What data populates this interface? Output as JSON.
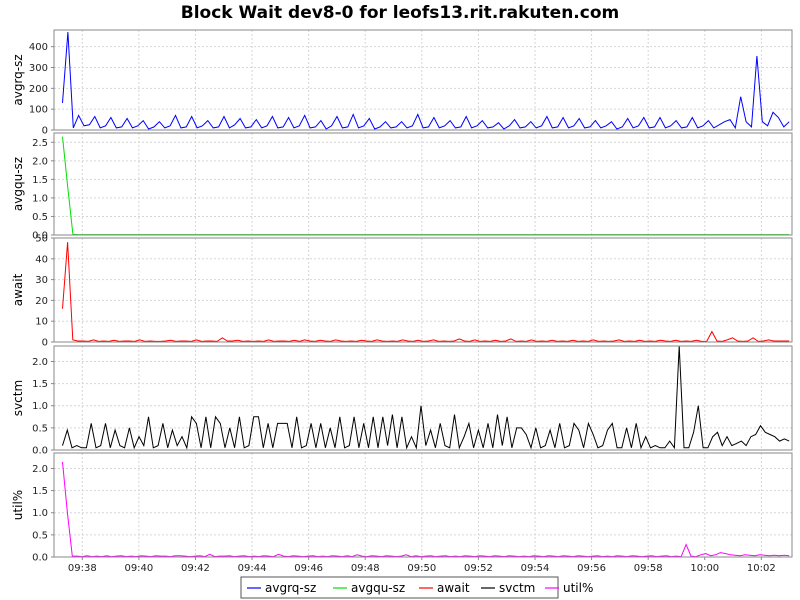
{
  "chart_data": {
    "type": "line",
    "title": "Block Wait dev8-0 for leofs13.rit.rakuten.com",
    "x_tick_labels": [
      "09:38",
      "09:40",
      "09:42",
      "09:44",
      "09:46",
      "09:48",
      "09:50",
      "09:52",
      "09:54",
      "09:56",
      "09:58",
      "10:00",
      "10:02"
    ],
    "x_range": [
      "09:37:00",
      "10:03:05"
    ],
    "grid": true,
    "legend_position": "bottom",
    "legend": [
      "avgrq-sz",
      "avgqu-sz",
      "await",
      "svctm",
      "util%"
    ],
    "panels": [
      {
        "name": "avgrq-sz",
        "ylabel": "avgrq-sz",
        "color": "#0000ff",
        "ylim": [
          0,
          480
        ],
        "yticks": [
          0,
          100,
          200,
          300,
          400
        ],
        "ytick_labels": [
          "0",
          "100",
          "200",
          "300",
          "400"
        ],
        "values": [
          130,
          470,
          10,
          70,
          20,
          25,
          65,
          10,
          20,
          60,
          10,
          15,
          55,
          10,
          20,
          45,
          5,
          15,
          40,
          10,
          20,
          70,
          10,
          15,
          65,
          10,
          20,
          45,
          10,
          15,
          65,
          10,
          25,
          55,
          10,
          15,
          50,
          10,
          20,
          65,
          10,
          15,
          60,
          10,
          20,
          70,
          10,
          15,
          45,
          5,
          20,
          65,
          10,
          15,
          75,
          10,
          20,
          55,
          5,
          15,
          40,
          10,
          15,
          40,
          10,
          20,
          75,
          10,
          15,
          60,
          10,
          20,
          45,
          10,
          15,
          65,
          10,
          20,
          45,
          10,
          15,
          35,
          5,
          20,
          50,
          10,
          15,
          40,
          10,
          20,
          65,
          10,
          15,
          60,
          10,
          20,
          55,
          10,
          15,
          45,
          10,
          20,
          40,
          5,
          15,
          55,
          10,
          20,
          60,
          10,
          15,
          60,
          10,
          20,
          45,
          10,
          15,
          60,
          10,
          20,
          45,
          10,
          25,
          40,
          50,
          10,
          160,
          40,
          15,
          355,
          40,
          20,
          85,
          60,
          15,
          40
        ]
      },
      {
        "name": "avgqu-sz",
        "ylabel": "avgqu-sz",
        "color": "#00e000",
        "ylim": [
          0,
          2.75
        ],
        "yticks": [
          0,
          0.5,
          1,
          1.5,
          2,
          2.5
        ],
        "ytick_labels": [
          "0.0",
          "0.5",
          "1.0",
          "1.5",
          "2.0",
          "2.5"
        ],
        "values": [
          2.65,
          1.3,
          0.02,
          0.01,
          0.01,
          0.01,
          0.01,
          0.01,
          0.01,
          0.01,
          0.01,
          0.01,
          0.01,
          0.01,
          0.01,
          0.01,
          0.01,
          0.01,
          0.01,
          0.01,
          0.01,
          0.01,
          0.01,
          0.01,
          0.01,
          0.01,
          0.01,
          0.01,
          0.01,
          0.01,
          0.01,
          0.01,
          0.01,
          0.01,
          0.01,
          0.01,
          0.01,
          0.01,
          0.01,
          0.01,
          0.01,
          0.01,
          0.01,
          0.01,
          0.01,
          0.01,
          0.01,
          0.01,
          0.01,
          0.01,
          0.01,
          0.01,
          0.01,
          0.01,
          0.01,
          0.01,
          0.01,
          0.01,
          0.01,
          0.01,
          0.01,
          0.01,
          0.01,
          0.01,
          0.01,
          0.01,
          0.01,
          0.01,
          0.01,
          0.01,
          0.01,
          0.01,
          0.01,
          0.01,
          0.01,
          0.01,
          0.01,
          0.01,
          0.01,
          0.01,
          0.01,
          0.01,
          0.01,
          0.01,
          0.01,
          0.01,
          0.01,
          0.01,
          0.01,
          0.01,
          0.01,
          0.01,
          0.01,
          0.01,
          0.01,
          0.01,
          0.01,
          0.01,
          0.01,
          0.01,
          0.01,
          0.01,
          0.01,
          0.01,
          0.01,
          0.01,
          0.01,
          0.01,
          0.01,
          0.01,
          0.01,
          0.01,
          0.01,
          0.01,
          0.01,
          0.01,
          0.01,
          0.01,
          0.01,
          0.01,
          0.01,
          0.01,
          0.01,
          0.01,
          0.01,
          0.01,
          0.01,
          0.01,
          0.01,
          0.01,
          0.01,
          0.01,
          0.01,
          0.01,
          0.01,
          0.01,
          0.01,
          0.01,
          0.01,
          0.01
        ]
      },
      {
        "name": "await",
        "ylabel": "await",
        "color": "#ff0000",
        "ylim": [
          0,
          50
        ],
        "yticks": [
          0,
          10,
          20,
          30,
          40,
          50
        ],
        "ytick_labels": [
          "0",
          "10",
          "20",
          "30",
          "40",
          "50"
        ],
        "values": [
          16,
          48,
          1,
          0.5,
          0.5,
          0.3,
          1,
          0.3,
          0.5,
          0.3,
          0.8,
          0.3,
          0.5,
          0.5,
          0.3,
          1,
          0.3,
          0.5,
          0.3,
          0.3,
          0.5,
          0.8,
          0.3,
          0.5,
          0.5,
          0.3,
          1,
          0.3,
          0.5,
          0.5,
          0.3,
          2,
          0.5,
          0.5,
          0.8,
          0.3,
          0.5,
          0.3,
          0.5,
          0.3,
          1,
          0.3,
          0.5,
          0.5,
          0.3,
          0.8,
          0.3,
          1,
          0.5,
          0.3,
          0.8,
          0.5,
          0.3,
          1,
          0.5,
          0.3,
          0.5,
          0.3,
          0.8,
          0.5,
          0.3,
          1,
          0.5,
          0.3,
          0.5,
          0.3,
          1,
          0.5,
          0.3,
          0.8,
          0.3,
          0.5,
          1,
          0.3,
          0.5,
          0.3,
          0.5,
          1.5,
          0.5,
          0.3,
          1,
          0.3,
          0.5,
          0.3,
          0.8,
          0.3,
          0.5,
          1.5,
          0.3,
          0.5,
          0.3,
          1,
          0.3,
          0.5,
          0.3,
          0.8,
          0.3,
          0.5,
          0.3,
          0.8,
          0.3,
          0.5,
          0.3,
          1,
          0.3,
          0.5,
          0.3,
          0.5,
          1,
          0.3,
          0.5,
          0.3,
          0.8,
          0.3,
          0.5,
          0.3,
          0.8,
          0.5,
          0.3,
          0.8,
          0.3,
          0.5,
          0.3,
          0.8,
          0.3,
          0.3,
          5,
          0.5,
          0.3,
          1,
          2,
          0.5,
          0.3,
          0.5,
          2,
          0.3,
          0.5,
          1,
          0.5,
          0.5,
          0.5,
          0.5
        ]
      },
      {
        "name": "svctm",
        "ylabel": "svctm",
        "color": "#000000",
        "ylim": [
          0,
          2.35
        ],
        "yticks": [
          0,
          0.5,
          1,
          1.5,
          2
        ],
        "ytick_labels": [
          "0.0",
          "0.5",
          "1.0",
          "1.5",
          "2.0"
        ],
        "values": [
          0.1,
          0.45,
          0.05,
          0.1,
          0.05,
          0.05,
          0.6,
          0.05,
          0.1,
          0.6,
          0.05,
          0.45,
          0.1,
          0.05,
          0.5,
          0.05,
          0.3,
          0.1,
          0.75,
          0.05,
          0.1,
          0.6,
          0.05,
          0.45,
          0.1,
          0.3,
          0.05,
          0.75,
          0.6,
          0.05,
          0.75,
          0.05,
          0.75,
          0.6,
          0.05,
          0.5,
          0.05,
          0.75,
          0.05,
          0.1,
          0.75,
          0.75,
          0.05,
          0.6,
          0.05,
          0.6,
          0.6,
          0.6,
          0.05,
          0.75,
          0.05,
          0.1,
          0.6,
          0.05,
          0.6,
          0.05,
          0.5,
          0.05,
          0.75,
          0.05,
          0.1,
          0.75,
          0.05,
          0.6,
          0.05,
          0.75,
          0.05,
          0.75,
          0.1,
          0.8,
          0.05,
          0.75,
          0.05,
          0.3,
          0.05,
          1.0,
          0.1,
          0.45,
          0.05,
          0.6,
          0.1,
          0.05,
          0.8,
          0.05,
          0.3,
          0.6,
          0.05,
          0.45,
          0.05,
          0.6,
          0.05,
          0.8,
          0.1,
          0.75,
          0.05,
          0.5,
          0.5,
          0.35,
          0.05,
          0.5,
          0.05,
          0.1,
          0.45,
          0.05,
          0.6,
          0.05,
          0.1,
          0.6,
          0.45,
          0.05,
          0.6,
          0.35,
          0.05,
          0.1,
          0.45,
          0.6,
          0.05,
          0.05,
          0.5,
          0.05,
          0.6,
          0.05,
          0.3,
          0.05,
          0.1,
          0.05,
          0.05,
          0.2,
          0.05,
          2.35,
          0.05,
          0.05,
          0.4,
          1.0,
          0.05,
          0.05,
          0.3,
          0.4,
          0.1,
          0.3,
          0.1,
          0.15,
          0.2,
          0.1,
          0.3,
          0.35,
          0.55,
          0.4,
          0.35,
          0.3,
          0.2,
          0.25,
          0.2
        ]
      },
      {
        "name": "util%",
        "ylabel": "util%",
        "color": "#ff00ff",
        "ylim": [
          0,
          2.35
        ],
        "yticks": [
          0,
          0.5,
          1,
          1.5,
          2
        ],
        "ytick_labels": [
          "0.0",
          "0.5",
          "1.0",
          "1.5",
          "2.0"
        ],
        "values": [
          2.15,
          1.0,
          0.02,
          0.02,
          0.01,
          0.03,
          0.01,
          0.02,
          0.01,
          0.03,
          0.01,
          0.02,
          0.03,
          0.01,
          0.02,
          0.01,
          0.03,
          0.02,
          0.01,
          0.03,
          0.02,
          0.02,
          0.01,
          0.03,
          0.03,
          0.02,
          0.01,
          0.02,
          0.03,
          0.01,
          0.06,
          0.01,
          0.02,
          0.02,
          0.03,
          0.01,
          0.02,
          0.03,
          0.01,
          0.02,
          0.01,
          0.03,
          0.02,
          0.01,
          0.06,
          0.02,
          0.01,
          0.03,
          0.02,
          0.01,
          0.02,
          0.03,
          0.01,
          0.02,
          0.01,
          0.03,
          0.02,
          0.01,
          0.03,
          0.01,
          0.05,
          0.02,
          0.01,
          0.03,
          0.02,
          0.01,
          0.03,
          0.02,
          0.01,
          0.02,
          0.05,
          0.01,
          0.03,
          0.01,
          0.02,
          0.03,
          0.01,
          0.02,
          0.03,
          0.01,
          0.02,
          0.01,
          0.03,
          0.02,
          0.01,
          0.03,
          0.02,
          0.01,
          0.03,
          0.02,
          0.01,
          0.03,
          0.02,
          0.01,
          0.02,
          0.01,
          0.03,
          0.02,
          0.01,
          0.03,
          0.02,
          0.01,
          0.03,
          0.02,
          0.01,
          0.03,
          0.02,
          0.01,
          0.02,
          0.03,
          0.01,
          0.02,
          0.01,
          0.03,
          0.02,
          0.01,
          0.03,
          0.02,
          0.01,
          0.02,
          0.03,
          0.01,
          0.02,
          0.03,
          0.01,
          0.02,
          0.01,
          0.28,
          0.02,
          0.01,
          0.05,
          0.08,
          0.03,
          0.05,
          0.1,
          0.08,
          0.05,
          0.04,
          0.03,
          0.05,
          0.04,
          0.03,
          0.05,
          0.04,
          0.03,
          0.04,
          0.03,
          0.04,
          0.03
        ]
      }
    ]
  }
}
